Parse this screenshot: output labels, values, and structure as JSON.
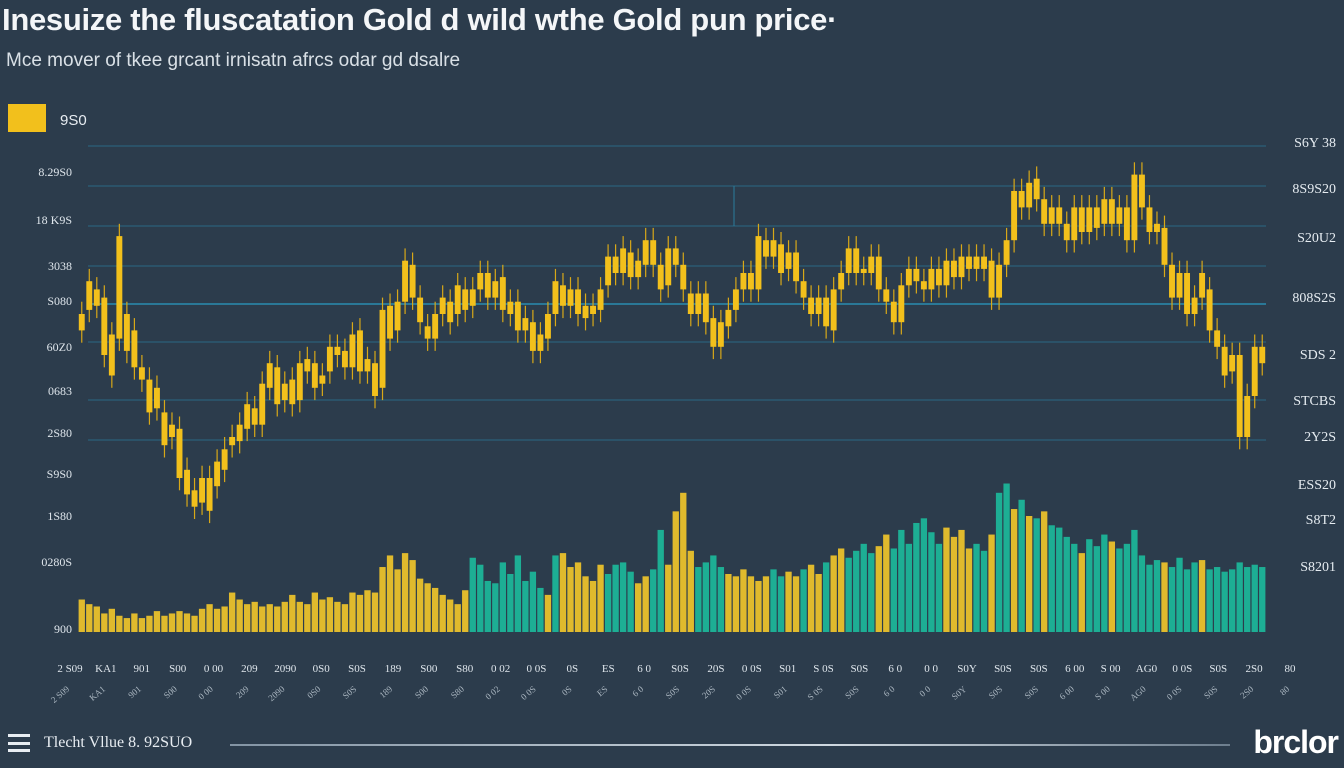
{
  "header": {
    "title": "Inesuize the fluscatation Gold d wild wthe Gold pun price·",
    "subtitle": "Mce mover of tkee grcant irnisatn afrcs odar gd dsalre"
  },
  "legend": {
    "label": "9S0",
    "color": "#f2c01c"
  },
  "footer": {
    "text": "Tlecht Vllue 8. 92SUO",
    "brand": "brclor"
  },
  "colors": {
    "background": "#2c3c4c",
    "price": "#f2c01c",
    "volume_teal": "#1cb89a",
    "volume_yellow": "#f0c52a",
    "gridline": "#2a7c9c"
  },
  "chart_data": {
    "type": "bar",
    "title": "Inesuize the fluscatation Gold d wild wthe Gold pun price·",
    "subtitle": "Mce mover of tkee grcant irnisatn afrcs odar gd dsalre",
    "left_axis_ticks": [
      "8.29S0",
      "18 K9S",
      "3038",
      "S080",
      "60Z0",
      "0683",
      "2S80",
      "S9S0",
      "1S80",
      "0280S",
      "900"
    ],
    "right_axis_ticks": [
      "S6Y 38",
      "8S9S20",
      "S20U2",
      "808S2S",
      "SDS 2",
      "STCBS",
      "2Y2S",
      "ESS20",
      "S8T2",
      "S8201"
    ],
    "x_tick_labels": [
      "2 S09",
      "KA1",
      "901",
      "S00",
      "0 00",
      "209",
      "2090",
      "0S0",
      "S0S",
      "189",
      "S00",
      "S80",
      "0 02",
      "0 0S",
      "0S",
      "ES",
      "6 0",
      "S0S",
      "20S",
      "0 0S",
      "S01",
      "S 0S",
      "S0S",
      "6 0",
      "0 0",
      "S0Y",
      "S0S",
      "S0S",
      "6 00",
      "S 00",
      "AG0",
      "0 0S",
      "S0S",
      "2S0",
      "80"
    ],
    "price_ylim": [
      0,
      100
    ],
    "price": [
      [
        56,
        60
      ],
      [
        61,
        68
      ],
      [
        66,
        62
      ],
      [
        64,
        50
      ],
      [
        45,
        55
      ],
      [
        54,
        79
      ],
      [
        51,
        60
      ],
      [
        56,
        47
      ],
      [
        47,
        44
      ],
      [
        44,
        36
      ],
      [
        37,
        42
      ],
      [
        36,
        28
      ],
      [
        30,
        33
      ],
      [
        32,
        20
      ],
      [
        22,
        16
      ],
      [
        17,
        13
      ],
      [
        14,
        20
      ],
      [
        20,
        12
      ],
      [
        18,
        24
      ],
      [
        22,
        27
      ],
      [
        28,
        30
      ],
      [
        29,
        33
      ],
      [
        32,
        38
      ],
      [
        37,
        33
      ],
      [
        33,
        43
      ],
      [
        42,
        48
      ],
      [
        47,
        38
      ],
      [
        39,
        43
      ],
      [
        44,
        38
      ],
      [
        39,
        48
      ],
      [
        46,
        49
      ],
      [
        48,
        42
      ],
      [
        43,
        45
      ],
      [
        46,
        52
      ],
      [
        50,
        52
      ],
      [
        51,
        47
      ],
      [
        47,
        55
      ],
      [
        56,
        46
      ],
      [
        46,
        49
      ],
      [
        48,
        40
      ],
      [
        42,
        61
      ],
      [
        62,
        54
      ],
      [
        56,
        63
      ],
      [
        63,
        73
      ],
      [
        72,
        64
      ],
      [
        64,
        58
      ],
      [
        57,
        54
      ],
      [
        54,
        60
      ],
      [
        60,
        64
      ],
      [
        63,
        58
      ],
      [
        60,
        67
      ],
      [
        66,
        61
      ],
      [
        62,
        66
      ],
      [
        66,
        70
      ],
      [
        70,
        64
      ],
      [
        64,
        68
      ],
      [
        69,
        61
      ],
      [
        60,
        63
      ],
      [
        63,
        56
      ],
      [
        56,
        59
      ],
      [
        58,
        51
      ],
      [
        51,
        55
      ],
      [
        54,
        60
      ],
      [
        60,
        68
      ],
      [
        67,
        62
      ],
      [
        62,
        66
      ],
      [
        66,
        60
      ],
      [
        59,
        62
      ],
      [
        62,
        60
      ],
      [
        61,
        66
      ],
      [
        67,
        74
      ],
      [
        74,
        70
      ],
      [
        70,
        76
      ],
      [
        75,
        69
      ],
      [
        69,
        73
      ],
      [
        72,
        78
      ],
      [
        78,
        72
      ],
      [
        72,
        66
      ],
      [
        67,
        76
      ],
      [
        76,
        72
      ],
      [
        72,
        66
      ],
      [
        65,
        60
      ],
      [
        60,
        65
      ],
      [
        65,
        58
      ],
      [
        59,
        52
      ],
      [
        52,
        58
      ],
      [
        57,
        61
      ],
      [
        61,
        66
      ],
      [
        66,
        70
      ],
      [
        70,
        66
      ],
      [
        66,
        79
      ],
      [
        78,
        74
      ],
      [
        74,
        78
      ],
      [
        77,
        70
      ],
      [
        71,
        75
      ],
      [
        75,
        68
      ],
      [
        68,
        64
      ],
      [
        64,
        60
      ],
      [
        60,
        64
      ],
      [
        64,
        57
      ],
      [
        56,
        66
      ],
      [
        66,
        70
      ],
      [
        70,
        76
      ],
      [
        76,
        70
      ],
      [
        70,
        71
      ],
      [
        70,
        74
      ],
      [
        74,
        66
      ],
      [
        66,
        63
      ],
      [
        63,
        58
      ],
      [
        58,
        67
      ],
      [
        67,
        71
      ],
      [
        71,
        68
      ],
      [
        68,
        66
      ],
      [
        66,
        71
      ],
      [
        71,
        67
      ],
      [
        67,
        73
      ],
      [
        73,
        69
      ],
      [
        69,
        74
      ],
      [
        74,
        71
      ],
      [
        71,
        74
      ],
      [
        74,
        71
      ],
      [
        73,
        64
      ],
      [
        64,
        72
      ],
      [
        72,
        78
      ],
      [
        78,
        90
      ],
      [
        90,
        86
      ],
      [
        86,
        92
      ],
      [
        93,
        88
      ],
      [
        88,
        82
      ],
      [
        82,
        86
      ],
      [
        86,
        82
      ],
      [
        82,
        78
      ],
      [
        78,
        86
      ],
      [
        86,
        80
      ],
      [
        80,
        86
      ],
      [
        86,
        81
      ],
      [
        82,
        88
      ],
      [
        88,
        82
      ],
      [
        82,
        86
      ],
      [
        86,
        78
      ],
      [
        78,
        94
      ],
      [
        94,
        86
      ],
      [
        86,
        80
      ],
      [
        80,
        82
      ],
      [
        81,
        72
      ],
      [
        72,
        64
      ],
      [
        64,
        70
      ],
      [
        70,
        60
      ],
      [
        60,
        64
      ],
      [
        64,
        70
      ],
      [
        66,
        56
      ],
      [
        56,
        52
      ],
      [
        52,
        45
      ],
      [
        46,
        50
      ],
      [
        50,
        30
      ],
      [
        30,
        40
      ],
      [
        40,
        52
      ],
      [
        52,
        48
      ]
    ],
    "volume_ylim": [
      0,
      100
    ],
    "volume": [
      [
        14,
        "y"
      ],
      [
        12,
        "y"
      ],
      [
        11,
        "y"
      ],
      [
        8,
        "y"
      ],
      [
        10,
        "y"
      ],
      [
        7,
        "y"
      ],
      [
        6,
        "y"
      ],
      [
        8,
        "y"
      ],
      [
        6,
        "y"
      ],
      [
        7,
        "y"
      ],
      [
        9,
        "y"
      ],
      [
        7,
        "y"
      ],
      [
        8,
        "y"
      ],
      [
        9,
        "y"
      ],
      [
        8,
        "y"
      ],
      [
        7,
        "y"
      ],
      [
        10,
        "y"
      ],
      [
        12,
        "y"
      ],
      [
        10,
        "y"
      ],
      [
        11,
        "y"
      ],
      [
        17,
        "y"
      ],
      [
        14,
        "y"
      ],
      [
        12,
        "y"
      ],
      [
        13,
        "y"
      ],
      [
        11,
        "y"
      ],
      [
        12,
        "y"
      ],
      [
        11,
        "y"
      ],
      [
        13,
        "y"
      ],
      [
        16,
        "y"
      ],
      [
        13,
        "y"
      ],
      [
        12,
        "y"
      ],
      [
        17,
        "y"
      ],
      [
        14,
        "y"
      ],
      [
        15,
        "y"
      ],
      [
        13,
        "y"
      ],
      [
        12,
        "y"
      ],
      [
        17,
        "y"
      ],
      [
        16,
        "y"
      ],
      [
        18,
        "y"
      ],
      [
        17,
        "y"
      ],
      [
        28,
        "y"
      ],
      [
        33,
        "y"
      ],
      [
        27,
        "y"
      ],
      [
        34,
        "y"
      ],
      [
        31,
        "y"
      ],
      [
        23,
        "y"
      ],
      [
        21,
        "y"
      ],
      [
        19,
        "y"
      ],
      [
        16,
        "y"
      ],
      [
        14,
        "y"
      ],
      [
        12,
        "y"
      ],
      [
        18,
        "y"
      ],
      [
        32,
        "t"
      ],
      [
        29,
        "t"
      ],
      [
        22,
        "t"
      ],
      [
        21,
        "t"
      ],
      [
        30,
        "t"
      ],
      [
        25,
        "t"
      ],
      [
        33,
        "t"
      ],
      [
        22,
        "t"
      ],
      [
        26,
        "t"
      ],
      [
        19,
        "t"
      ],
      [
        16,
        "y"
      ],
      [
        33,
        "t"
      ],
      [
        34,
        "y"
      ],
      [
        28,
        "y"
      ],
      [
        30,
        "y"
      ],
      [
        24,
        "y"
      ],
      [
        22,
        "y"
      ],
      [
        29,
        "y"
      ],
      [
        25,
        "t"
      ],
      [
        29,
        "t"
      ],
      [
        30,
        "t"
      ],
      [
        26,
        "t"
      ],
      [
        21,
        "y"
      ],
      [
        24,
        "y"
      ],
      [
        27,
        "t"
      ],
      [
        44,
        "t"
      ],
      [
        29,
        "y"
      ],
      [
        52,
        "y"
      ],
      [
        60,
        "y"
      ],
      [
        35,
        "y"
      ],
      [
        28,
        "t"
      ],
      [
        30,
        "t"
      ],
      [
        33,
        "t"
      ],
      [
        28,
        "t"
      ],
      [
        25,
        "y"
      ],
      [
        24,
        "y"
      ],
      [
        27,
        "y"
      ],
      [
        24,
        "y"
      ],
      [
        22,
        "y"
      ],
      [
        24,
        "y"
      ],
      [
        27,
        "t"
      ],
      [
        24,
        "t"
      ],
      [
        26,
        "y"
      ],
      [
        24,
        "y"
      ],
      [
        27,
        "t"
      ],
      [
        29,
        "y"
      ],
      [
        25,
        "y"
      ],
      [
        30,
        "t"
      ],
      [
        33,
        "y"
      ],
      [
        36,
        "y"
      ],
      [
        32,
        "t"
      ],
      [
        35,
        "t"
      ],
      [
        38,
        "t"
      ],
      [
        34,
        "t"
      ],
      [
        37,
        "y"
      ],
      [
        42,
        "y"
      ],
      [
        36,
        "t"
      ],
      [
        44,
        "t"
      ],
      [
        38,
        "t"
      ],
      [
        47,
        "t"
      ],
      [
        49,
        "t"
      ],
      [
        43,
        "t"
      ],
      [
        38,
        "t"
      ],
      [
        45,
        "y"
      ],
      [
        41,
        "y"
      ],
      [
        44,
        "y"
      ],
      [
        36,
        "y"
      ],
      [
        38,
        "t"
      ],
      [
        35,
        "t"
      ],
      [
        42,
        "y"
      ],
      [
        60,
        "t"
      ],
      [
        64,
        "t"
      ],
      [
        53,
        "y"
      ],
      [
        57,
        "t"
      ],
      [
        50,
        "y"
      ],
      [
        49,
        "t"
      ],
      [
        52,
        "y"
      ],
      [
        46,
        "t"
      ],
      [
        45,
        "t"
      ],
      [
        41,
        "t"
      ],
      [
        38,
        "t"
      ],
      [
        34,
        "y"
      ],
      [
        40,
        "t"
      ],
      [
        37,
        "t"
      ],
      [
        42,
        "t"
      ],
      [
        39,
        "y"
      ],
      [
        36,
        "t"
      ],
      [
        38,
        "t"
      ],
      [
        44,
        "t"
      ],
      [
        33,
        "t"
      ],
      [
        29,
        "t"
      ],
      [
        31,
        "t"
      ],
      [
        30,
        "y"
      ],
      [
        28,
        "t"
      ],
      [
        32,
        "t"
      ],
      [
        27,
        "t"
      ],
      [
        30,
        "t"
      ],
      [
        31,
        "y"
      ],
      [
        27,
        "t"
      ],
      [
        28,
        "t"
      ],
      [
        26,
        "t"
      ],
      [
        27,
        "t"
      ],
      [
        30,
        "t"
      ],
      [
        28,
        "t"
      ],
      [
        29,
        "t"
      ],
      [
        28,
        "t"
      ]
    ],
    "grid": true
  }
}
